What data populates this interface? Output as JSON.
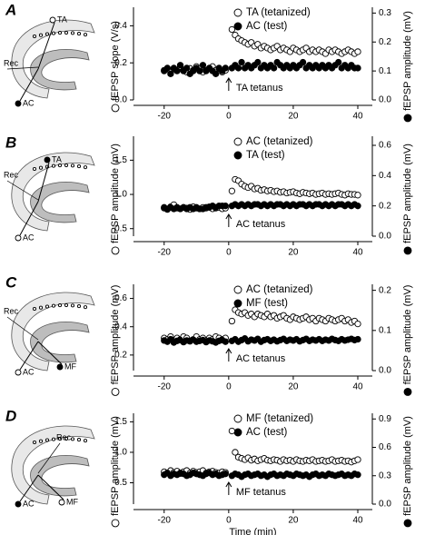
{
  "chart_data": [
    {
      "type": "scatter",
      "panel_label": "A",
      "schematic_labels": [
        "Rec",
        "TA",
        "AC"
      ],
      "y_label": "fEPSP slope (V/s)",
      "y2_label": "fEPSP amplitude (mV)",
      "annotation": "TA tetanus",
      "xlim": [
        -29.5,
        44.5
      ],
      "xticks": [
        -20,
        0,
        20,
        40
      ],
      "ylim": [
        0,
        0.5
      ],
      "yticks": [
        {
          "value": 0,
          "label": "0.0"
        },
        0.2,
        0.4
      ],
      "y2lim": [
        0,
        0.32
      ],
      "y2ticks": [
        {
          "value": 0,
          "label": "0.0"
        },
        0.1,
        0.2,
        0.3
      ],
      "x": [
        -20,
        -19,
        -18,
        -17,
        -16,
        -15,
        -14,
        -13,
        -12,
        -11,
        -10,
        -9,
        -8,
        -7,
        -6,
        -5,
        -4,
        -3,
        -2,
        -1,
        1,
        2,
        3,
        4,
        5,
        6,
        7,
        8,
        9,
        10,
        11,
        12,
        13,
        14,
        15,
        16,
        17,
        18,
        19,
        20,
        21,
        22,
        23,
        24,
        25,
        26,
        27,
        28,
        29,
        30,
        31,
        32,
        33,
        34,
        35,
        36,
        37,
        38,
        39,
        40
      ],
      "series": [
        {
          "name": "TA (tetanized)",
          "color": "#ffffff",
          "axis": "y",
          "values": [
            0.16,
            0.17,
            0.15,
            0.17,
            0.16,
            0.18,
            0.16,
            0.15,
            0.17,
            0.16,
            0.18,
            0.17,
            0.15,
            0.16,
            0.17,
            0.18,
            0.16,
            0.17,
            0.15,
            0.16,
            0.38,
            0.35,
            0.33,
            0.32,
            0.31,
            0.3,
            0.31,
            0.29,
            0.3,
            0.28,
            0.29,
            0.28,
            0.27,
            0.28,
            0.29,
            0.27,
            0.28,
            0.27,
            0.26,
            0.28,
            0.27,
            0.26,
            0.27,
            0.28,
            0.26,
            0.27,
            0.26,
            0.27,
            0.26,
            0.25,
            0.27,
            0.26,
            0.27,
            0.26,
            0.25,
            0.26,
            0.27,
            0.26,
            0.25,
            0.26
          ]
        },
        {
          "name": "AC (test)",
          "color": "#000000",
          "axis": "y2",
          "values": [
            0.1,
            0.11,
            0.09,
            0.11,
            0.1,
            0.12,
            0.1,
            0.11,
            0.09,
            0.1,
            0.11,
            0.1,
            0.12,
            0.1,
            0.11,
            0.1,
            0.09,
            0.11,
            0.1,
            0.11,
            0.11,
            0.12,
            0.11,
            0.13,
            0.11,
            0.12,
            0.11,
            0.12,
            0.13,
            0.11,
            0.12,
            0.11,
            0.12,
            0.11,
            0.13,
            0.12,
            0.11,
            0.12,
            0.11,
            0.12,
            0.11,
            0.12,
            0.13,
            0.11,
            0.12,
            0.11,
            0.12,
            0.11,
            0.12,
            0.11,
            0.12,
            0.11,
            0.12,
            0.13,
            0.11,
            0.12,
            0.11,
            0.12,
            0.11,
            0.11
          ]
        }
      ]
    },
    {
      "type": "scatter",
      "panel_label": "B",
      "schematic_labels": [
        "Rec",
        "TA",
        "AC"
      ],
      "y_label": "fEPSP amplitude (mV)",
      "y2_label": "fEPSP amplitude (mV)",
      "annotation": "AC tetanus",
      "xlim": [
        -29.5,
        44.5
      ],
      "xticks": [
        -20,
        0,
        20,
        40
      ],
      "ylim": [
        0.39,
        1.85
      ],
      "yticks": [
        0.5,
        {
          "value": 1,
          "label": "1.0"
        },
        1.5
      ],
      "y2lim": [
        0,
        0.66
      ],
      "y2ticks": [
        {
          "value": 0,
          "label": "0.0"
        },
        0.2,
        0.4,
        0.6
      ],
      "x": [
        -20,
        -19,
        -18,
        -17,
        -16,
        -15,
        -14,
        -13,
        -12,
        -11,
        -10,
        -9,
        -8,
        -7,
        -6,
        -5,
        -4,
        -3,
        -2,
        -1,
        1,
        2,
        3,
        4,
        5,
        6,
        7,
        8,
        9,
        10,
        11,
        12,
        13,
        14,
        15,
        16,
        17,
        18,
        19,
        20,
        21,
        22,
        23,
        24,
        25,
        26,
        27,
        28,
        29,
        30,
        31,
        32,
        33,
        34,
        35,
        36,
        37,
        38,
        39,
        40
      ],
      "series": [
        {
          "name": "AC (tetanized)",
          "color": "#ffffff",
          "axis": "y",
          "values": [
            0.8,
            0.78,
            0.82,
            0.85,
            0.8,
            0.79,
            0.81,
            0.8,
            0.78,
            0.82,
            0.8,
            0.79,
            0.81,
            0.8,
            0.82,
            0.79,
            0.8,
            0.81,
            0.79,
            0.8,
            1.05,
            1.22,
            1.2,
            1.15,
            1.12,
            1.1,
            1.12,
            1.08,
            1.09,
            1.06,
            1.07,
            1.05,
            1.06,
            1.04,
            1.05,
            1.03,
            1.04,
            1.02,
            1.03,
            1.04,
            1.02,
            1.01,
            1.03,
            1.02,
            1.01,
            1.02,
            1.0,
            1.01,
            1.02,
            1.0,
            1.01,
            1.0,
            1.01,
            1.02,
            1.0,
            0.99,
            1.01,
            1.0,
            1.0,
            0.99
          ]
        },
        {
          "name": "TA (test)",
          "color": "#000000",
          "axis": "y2",
          "values": [
            0.19,
            0.18,
            0.19,
            0.18,
            0.19,
            0.18,
            0.19,
            0.18,
            0.19,
            0.18,
            0.19,
            0.18,
            0.18,
            0.19,
            0.19,
            0.2,
            0.19,
            0.2,
            0.2,
            0.2,
            0.2,
            0.21,
            0.2,
            0.21,
            0.2,
            0.21,
            0.2,
            0.21,
            0.21,
            0.2,
            0.21,
            0.2,
            0.21,
            0.2,
            0.21,
            0.21,
            0.2,
            0.21,
            0.2,
            0.21,
            0.2,
            0.21,
            0.21,
            0.2,
            0.21,
            0.2,
            0.21,
            0.21,
            0.2,
            0.21,
            0.2,
            0.21,
            0.2,
            0.21,
            0.21,
            0.2,
            0.21,
            0.2,
            0.21,
            0.2
          ]
        }
      ]
    },
    {
      "type": "scatter",
      "panel_label": "C",
      "schematic_labels": [
        "Rec",
        "AC",
        "MF"
      ],
      "y_label": "fEPSP amplitude (mV)",
      "y2_label": "fEPSP amplitude (mV)",
      "annotation": "AC tetanus",
      "xlim": [
        -29.5,
        44.5
      ],
      "xticks": [
        -20,
        0,
        20,
        40
      ],
      "ylim": [
        0.09,
        0.7
      ],
      "yticks": [
        0.2,
        0.4,
        0.6
      ],
      "y2lim": [
        0,
        0.215
      ],
      "y2ticks": [
        {
          "value": 0,
          "label": "0.0"
        },
        0.1,
        0.2
      ],
      "x": [
        -20,
        -19,
        -18,
        -17,
        -16,
        -15,
        -14,
        -13,
        -12,
        -11,
        -10,
        -9,
        -8,
        -7,
        -6,
        -5,
        -4,
        -3,
        -2,
        -1,
        1,
        2,
        3,
        4,
        5,
        6,
        7,
        8,
        9,
        10,
        11,
        12,
        13,
        14,
        15,
        16,
        17,
        18,
        19,
        20,
        21,
        22,
        23,
        24,
        25,
        26,
        27,
        28,
        29,
        30,
        31,
        32,
        33,
        34,
        35,
        36,
        37,
        38,
        39,
        40
      ],
      "series": [
        {
          "name": "AC (tetanized)",
          "color": "#ffffff",
          "axis": "y",
          "values": [
            0.32,
            0.31,
            0.33,
            0.3,
            0.32,
            0.31,
            0.33,
            0.32,
            0.3,
            0.31,
            0.33,
            0.31,
            0.32,
            0.3,
            0.32,
            0.31,
            0.33,
            0.32,
            0.31,
            0.32,
            0.44,
            0.52,
            0.5,
            0.49,
            0.5,
            0.48,
            0.49,
            0.47,
            0.49,
            0.48,
            0.47,
            0.49,
            0.47,
            0.48,
            0.46,
            0.47,
            0.48,
            0.46,
            0.45,
            0.47,
            0.46,
            0.45,
            0.46,
            0.47,
            0.45,
            0.46,
            0.44,
            0.46,
            0.45,
            0.44,
            0.46,
            0.45,
            0.44,
            0.45,
            0.46,
            0.44,
            0.45,
            0.43,
            0.44,
            0.42
          ]
        },
        {
          "name": "MF (test)",
          "color": "#000000",
          "axis": "y2",
          "values": [
            0.075,
            0.072,
            0.078,
            0.07,
            0.074,
            0.076,
            0.071,
            0.075,
            0.073,
            0.077,
            0.072,
            0.074,
            0.076,
            0.071,
            0.075,
            0.073,
            0.07,
            0.074,
            0.076,
            0.072,
            0.074,
            0.078,
            0.072,
            0.076,
            0.08,
            0.073,
            0.077,
            0.075,
            0.079,
            0.072,
            0.076,
            0.078,
            0.074,
            0.077,
            0.073,
            0.076,
            0.079,
            0.074,
            0.077,
            0.075,
            0.078,
            0.073,
            0.076,
            0.079,
            0.074,
            0.077,
            0.075,
            0.078,
            0.074,
            0.077,
            0.075,
            0.079,
            0.076,
            0.074,
            0.078,
            0.075,
            0.077,
            0.079,
            0.076,
            0.078
          ]
        }
      ]
    },
    {
      "type": "scatter",
      "panel_label": "D",
      "schematic_labels": [
        "Rec",
        "AC",
        "MF"
      ],
      "y_label": "fEPSP amplitude (mV)",
      "y2_label": "fEPSP amplitude (mV)",
      "annotation": "MF tetanus",
      "x_label": "Time (min)",
      "xlim": [
        -29.5,
        44.5
      ],
      "xticks": [
        -20,
        0,
        20,
        40
      ],
      "ylim": [
        0.15,
        1.64
      ],
      "yticks": [
        0.5,
        {
          "value": 1,
          "label": "1.0"
        },
        1.5
      ],
      "y2lim": [
        0,
        0.96
      ],
      "y2ticks": [
        {
          "value": 0,
          "label": "0.0"
        },
        0.3,
        0.6,
        0.9
      ],
      "x": [
        -20,
        -19,
        -18,
        -17,
        -16,
        -15,
        -14,
        -13,
        -12,
        -11,
        -10,
        -9,
        -8,
        -7,
        -6,
        -5,
        -4,
        -3,
        -2,
        -1,
        1,
        2,
        3,
        4,
        5,
        6,
        7,
        8,
        9,
        10,
        11,
        12,
        13,
        14,
        15,
        16,
        17,
        18,
        19,
        20,
        21,
        22,
        23,
        24,
        25,
        26,
        27,
        28,
        29,
        30,
        31,
        32,
        33,
        34,
        35,
        36,
        37,
        38,
        39,
        40
      ],
      "series": [
        {
          "name": "MF (tetanized)",
          "color": "#ffffff",
          "axis": "y",
          "values": [
            0.68,
            0.66,
            0.7,
            0.67,
            0.69,
            0.65,
            0.68,
            0.7,
            0.66,
            0.69,
            0.67,
            0.68,
            0.7,
            0.66,
            0.68,
            0.69,
            0.67,
            0.66,
            0.68,
            0.67,
            1.35,
            1.0,
            0.92,
            0.9,
            0.88,
            0.91,
            0.87,
            0.89,
            0.86,
            0.88,
            0.9,
            0.87,
            0.86,
            0.88,
            0.87,
            0.85,
            0.88,
            0.86,
            0.87,
            0.85,
            0.88,
            0.86,
            0.85,
            0.87,
            0.86,
            0.88,
            0.85,
            0.86,
            0.87,
            0.85,
            0.86,
            0.88,
            0.85,
            0.86,
            0.87,
            0.85,
            0.86,
            0.84,
            0.86,
            0.88
          ]
        },
        {
          "name": "AC (test)",
          "color": "#000000",
          "axis": "y2",
          "values": [
            0.31,
            0.33,
            0.3,
            0.32,
            0.31,
            0.33,
            0.32,
            0.3,
            0.31,
            0.33,
            0.32,
            0.31,
            0.3,
            0.32,
            0.33,
            0.31,
            0.32,
            0.3,
            0.31,
            0.32,
            0.3,
            0.32,
            0.31,
            0.29,
            0.31,
            0.32,
            0.3,
            0.31,
            0.32,
            0.3,
            0.31,
            0.29,
            0.31,
            0.32,
            0.3,
            0.31,
            0.3,
            0.32,
            0.31,
            0.3,
            0.32,
            0.31,
            0.3,
            0.31,
            0.29,
            0.31,
            0.32,
            0.3,
            0.31,
            0.3,
            0.32,
            0.31,
            0.3,
            0.31,
            0.32,
            0.3,
            0.31,
            0.3,
            0.32,
            0.31
          ]
        }
      ]
    }
  ]
}
